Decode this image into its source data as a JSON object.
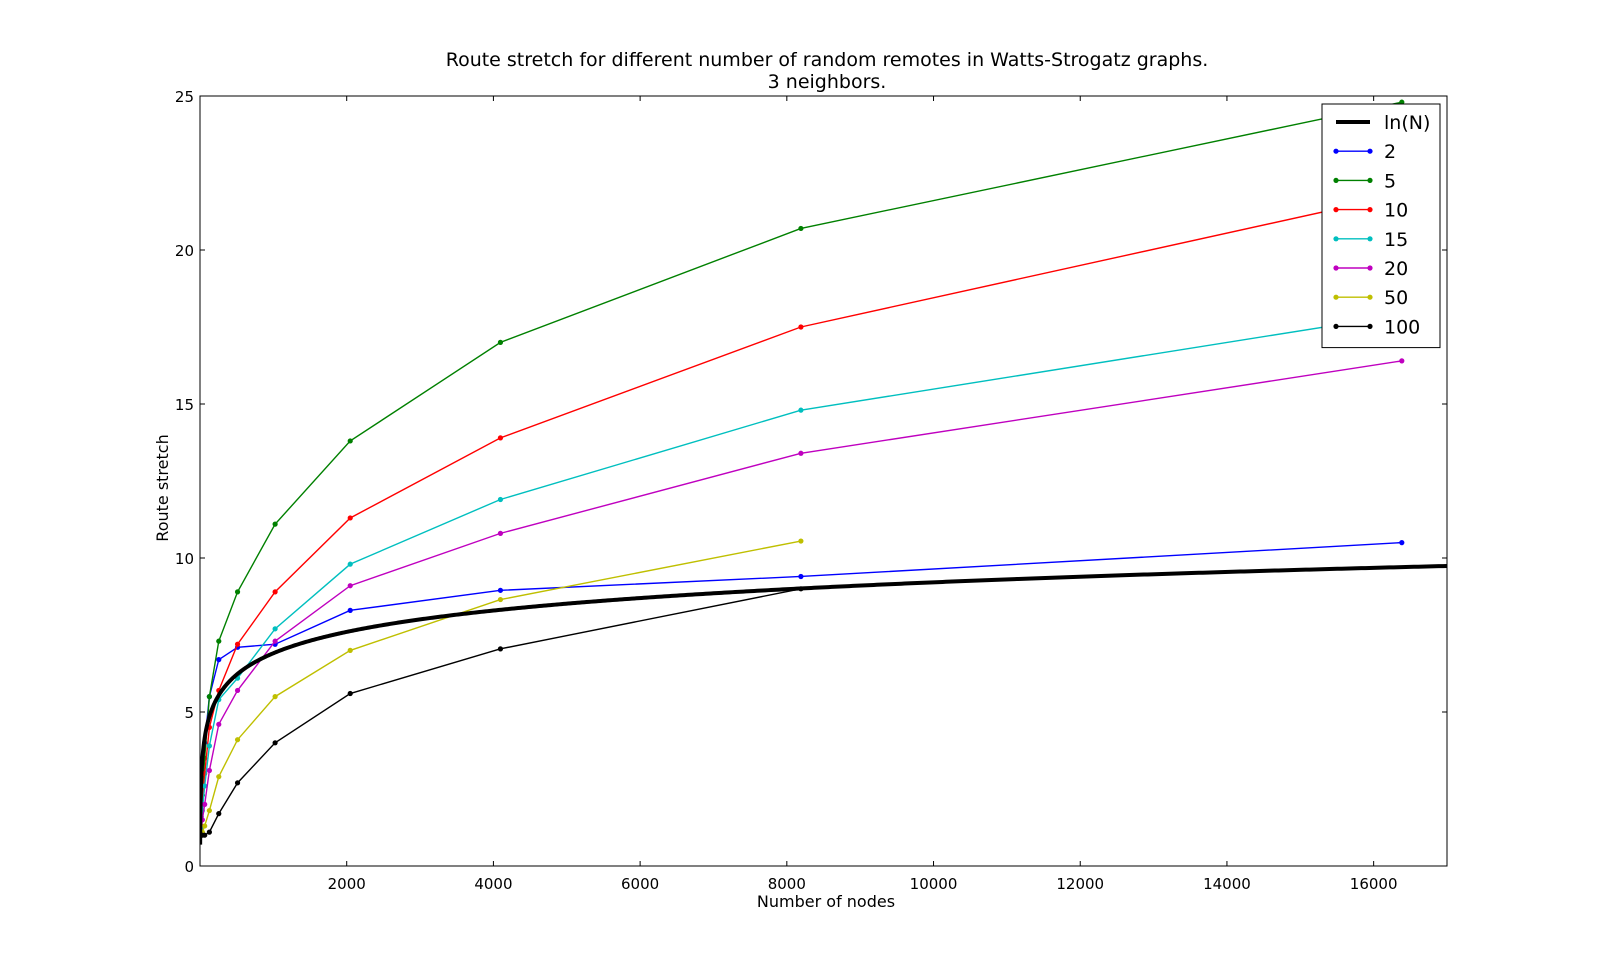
{
  "chart_data": {
    "type": "line",
    "title": "Route stretch for different number of random remotes in Watts-Strogatz graphs.",
    "subtitle": "3 neighbors.",
    "xlabel": "Number of nodes",
    "ylabel": "Route stretch",
    "xlim": [
      0,
      17000
    ],
    "ylim": [
      0,
      25
    ],
    "xticks": [
      2000,
      4000,
      6000,
      8000,
      10000,
      12000,
      14000,
      16000
    ],
    "yticks": [
      0,
      5,
      10,
      15,
      20,
      25
    ],
    "grid": false,
    "legend_position": "top-right",
    "reference": {
      "name": "ln(N)",
      "function": "ln",
      "color": "#000000"
    },
    "series": [
      {
        "name": "2",
        "color": "#0000ff",
        "x": [
          8,
          16,
          32,
          64,
          128,
          256,
          512,
          1024,
          2048,
          4096,
          8192,
          16384
        ],
        "y": [
          1.0,
          1.6,
          3.0,
          4.0,
          5.5,
          6.7,
          7.1,
          7.2,
          8.3,
          8.95,
          9.4,
          10.5
        ]
      },
      {
        "name": "5",
        "color": "#008000",
        "x": [
          8,
          16,
          32,
          64,
          128,
          256,
          512,
          1024,
          2048,
          4096,
          8192,
          16384
        ],
        "y": [
          1.0,
          1.5,
          2.3,
          3.5,
          5.5,
          7.3,
          8.9,
          11.1,
          13.8,
          17.0,
          20.7,
          24.8
        ]
      },
      {
        "name": "10",
        "color": "#ff0000",
        "x": [
          8,
          16,
          32,
          64,
          128,
          256,
          512,
          1024,
          2048,
          4096,
          8192,
          16384
        ],
        "y": [
          1.0,
          1.3,
          2.0,
          3.0,
          4.5,
          5.7,
          7.2,
          8.9,
          11.3,
          13.9,
          17.5,
          21.8
        ]
      },
      {
        "name": "15",
        "color": "#00bfbf",
        "x": [
          8,
          16,
          32,
          64,
          128,
          256,
          512,
          1024,
          2048,
          4096,
          8192,
          16384
        ],
        "y": [
          1.0,
          1.2,
          1.8,
          2.6,
          3.9,
          5.4,
          6.1,
          7.7,
          9.8,
          11.9,
          14.8,
          17.9
        ]
      },
      {
        "name": "20",
        "color": "#bf00bf",
        "x": [
          8,
          16,
          32,
          64,
          128,
          256,
          512,
          1024,
          2048,
          4096,
          8192,
          16384
        ],
        "y": [
          1.0,
          1.1,
          1.5,
          2.0,
          3.1,
          4.6,
          5.7,
          7.3,
          9.1,
          10.8,
          13.4,
          16.4
        ]
      },
      {
        "name": "50",
        "color": "#bfbf00",
        "x": [
          8,
          16,
          32,
          64,
          128,
          256,
          512,
          1024,
          2048,
          4096,
          8192
        ],
        "y": [
          1.0,
          1.0,
          1.1,
          1.3,
          1.8,
          2.9,
          4.1,
          5.5,
          7.0,
          8.65,
          10.55
        ]
      },
      {
        "name": "100",
        "color": "#000000",
        "x": [
          8,
          16,
          32,
          64,
          128,
          256,
          512,
          1024,
          2048,
          4096,
          8192
        ],
        "y": [
          1.0,
          1.0,
          1.0,
          1.0,
          1.1,
          1.7,
          2.7,
          4.0,
          5.6,
          7.05,
          9.0
        ]
      }
    ]
  }
}
